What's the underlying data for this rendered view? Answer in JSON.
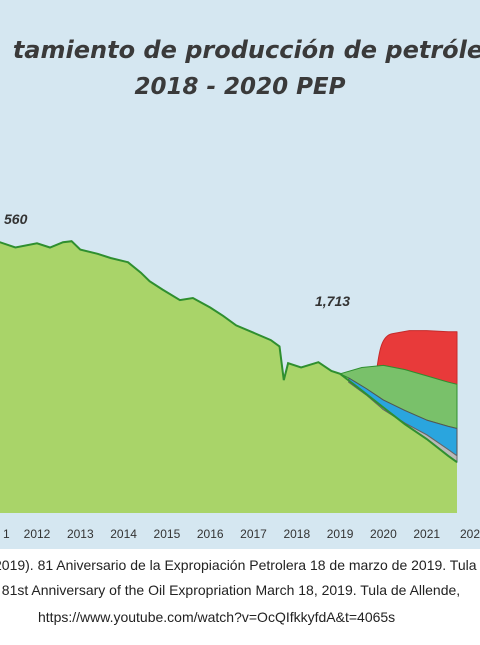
{
  "title_line1": "tamiento de producción de petróle",
  "title_line2": "2018 - 2020 PEP",
  "caption": {
    "line1": "2019). 81 Aniversario de la Expropiación Petrolera 18 de marzo de 2019. Tula",
    "line2": ". 81st Anniversary of the Oil Expropriation March 18, 2019. Tula de Allende,",
    "line3": "https://www.youtube.com/watch?v=OcQIfkkyfdA&t=4065s"
  },
  "colors": {
    "base": "#a9d469",
    "outline": "#2f8f2f",
    "green_band": "#79c16a",
    "red_band": "#e83a3a",
    "blue_band": "#2aa5de",
    "gray_band": "#b9b9b9"
  },
  "chart_data": {
    "type": "area",
    "title": "tamiento de producción de petróle 2018 - 2020 PEP",
    "xlabel": "",
    "ylabel": "",
    "x_ticks": [
      "1",
      "2012",
      "2013",
      "2014",
      "2015",
      "2016",
      "2017",
      "2018",
      "2019",
      "2020",
      "2021",
      "202"
    ],
    "annotations": [
      {
        "x": 2011.4,
        "label": "560"
      },
      {
        "x": 2018.8,
        "label": "1,713"
      }
    ],
    "series": [
      {
        "x": [
          2010.6,
          2011.0,
          2011.5,
          2012.0,
          2012.3,
          2012.6,
          2012.8,
          2013.0,
          2013.4,
          2013.7,
          2014.1,
          2014.4,
          2014.6,
          2014.9,
          2015.3,
          2015.6,
          2016.0,
          2016.3,
          2016.6,
          2017.0,
          2017.4,
          2017.6,
          2017.7,
          2017.8,
          2018.1,
          2018.5,
          2018.8,
          2019.0,
          2019.5,
          2020.0,
          2020.5,
          2021.0,
          2021.5,
          2021.7
        ],
        "values": [
          2545,
          2535,
          2500,
          2520,
          2500,
          2525,
          2530,
          2490,
          2470,
          2450,
          2430,
          2380,
          2340,
          2300,
          2250,
          2260,
          2215,
          2175,
          2130,
          2095,
          2060,
          2030,
          1870,
          1950,
          1930,
          1955,
          1913,
          1900,
          1820,
          1740,
          1660,
          1590,
          1510,
          1480
        ]
      },
      {
        "x": [
          2019.0,
          2019.5,
          2020.0,
          2020.5,
          2021.0,
          2021.5,
          2021.7
        ],
        "values": [
          1900,
          1930,
          1940,
          1920,
          1890,
          1860,
          1850
        ]
      },
      {
        "x": [
          2019.9,
          2020.2,
          2020.6,
          2021.0,
          2021.5,
          2021.7
        ],
        "values": [
          2050,
          2090,
          2105,
          2105,
          2100,
          2100
        ]
      },
      {
        "x": [
          2019.2,
          2019.6,
          2020.0,
          2020.5,
          2021.0,
          2021.5,
          2021.7
        ],
        "values": [
          1880,
          1830,
          1775,
          1725,
          1680,
          1650,
          1640
        ]
      },
      {
        "x": [
          2019.2,
          2019.6,
          2020.0,
          2020.5,
          2021.0,
          2021.5,
          2021.7
        ],
        "values": [
          1860,
          1800,
          1730,
          1665,
          1610,
          1540,
          1510
        ]
      }
    ]
  }
}
